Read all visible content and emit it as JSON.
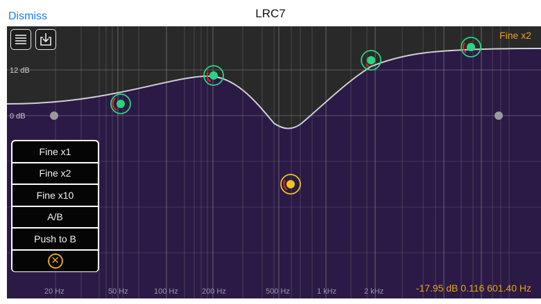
{
  "header": {
    "dismiss_label": "Dismiss",
    "title": "LRC7"
  },
  "toolbar": {
    "list_icon": "list-icon",
    "download_icon": "download-icon"
  },
  "eq": {
    "fine_mode": "Fine x2",
    "gain_labels": [
      "12 dB",
      "0 dB"
    ],
    "freq_labels": [
      "20 Hz",
      "50 Hz",
      "100 Hz",
      "200 Hz",
      "500 Hz",
      "1 kHz",
      "2 kHz"
    ],
    "readout": "-17.95 dB 0.116 601.40 Hz",
    "colors": {
      "fill": "#2b1a45",
      "curve": "#cfcfd6",
      "node_active": "#2bd47f",
      "node_selected": "#f0c419",
      "accent": "#e8a31a"
    }
  },
  "menu": {
    "items": [
      "Fine x1",
      "Fine x2",
      "Fine x10",
      "A/B",
      "Push to B"
    ],
    "close_icon": "close-circle-icon"
  }
}
